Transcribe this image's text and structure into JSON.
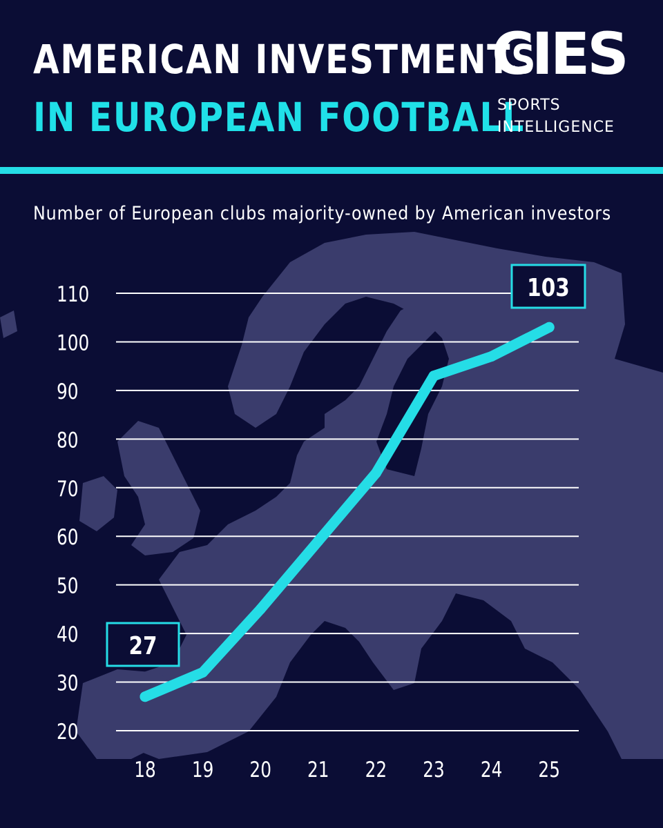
{
  "header": {
    "title_line1": "AMERICAN INVESTMENTS",
    "title_line2": "IN EUROPEAN FOOTBALL",
    "logo_mark": "CIES",
    "logo_line1": "SPORTS",
    "logo_line2": "INTELLIGENCE"
  },
  "colors": {
    "background": "#0b0d35",
    "map": "#3a3c6c",
    "accent": "#25dde6",
    "grid": "#ffffff"
  },
  "chart_data": {
    "type": "line",
    "title": "",
    "subtitle": "Number of European clubs majority-owned by American investors",
    "xlabel": "",
    "ylabel": "",
    "categories": [
      "18",
      "19",
      "20",
      "21",
      "22",
      "23",
      "24",
      "25"
    ],
    "series": [
      {
        "values": [
          27,
          32,
          45,
          59,
          73,
          93,
          97,
          103
        ]
      }
    ],
    "yticks": [
      20,
      30,
      40,
      50,
      60,
      70,
      80,
      90,
      100,
      110
    ],
    "ylim": [
      20,
      110
    ],
    "grid": true,
    "callouts": [
      {
        "label": "27",
        "index": 0
      },
      {
        "label": "103",
        "index": 7
      }
    ]
  }
}
